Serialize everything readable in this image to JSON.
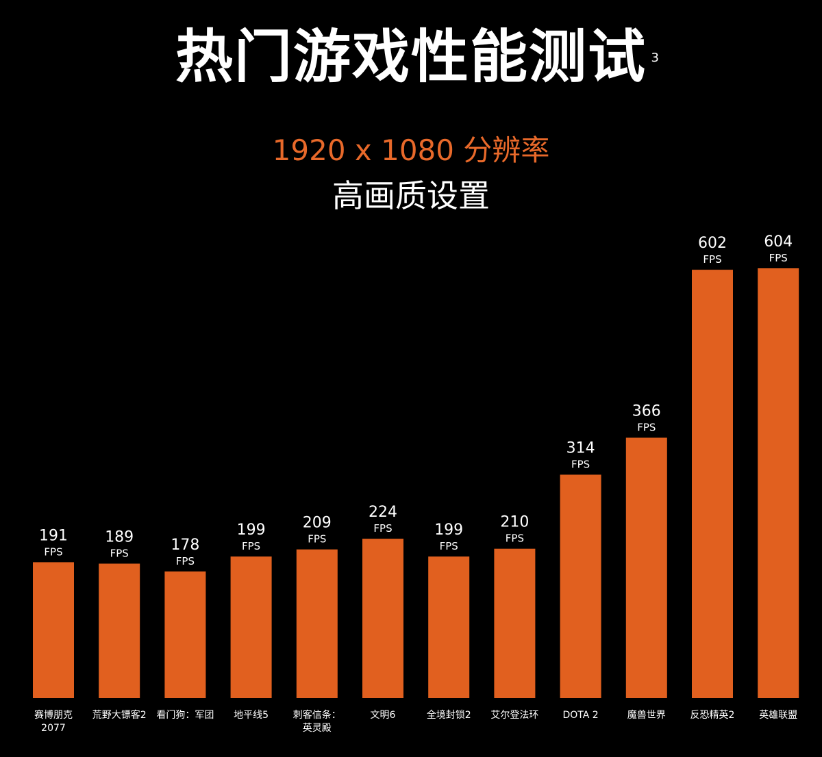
{
  "header": {
    "title": "热门游戏性能测试",
    "footnote": "3",
    "resolution": "1920 x 1080 分辨率",
    "quality": "高画质设置"
  },
  "chart_data": {
    "type": "bar",
    "title": "热门游戏性能测试",
    "subtitle": "1920 x 1080 分辨率 高画质设置",
    "categories": [
      "赛博朋克\n2077",
      "荒野大镖客2",
      "看门狗：军团",
      "地平线5",
      "刺客信条：\n英灵殿",
      "文明6",
      "全境封锁2",
      "艾尔登法环",
      "DOTA 2",
      "魔兽世界",
      "反恐精英2",
      "英雄联盟"
    ],
    "series": [
      {
        "values": [
          191,
          189,
          178,
          199,
          209,
          224,
          199,
          210,
          314,
          366,
          602,
          604
        ]
      }
    ],
    "data_label_unit": "FPS",
    "ylim": [
      0,
      650
    ],
    "grid": false,
    "bar_color": "#e1601f"
  }
}
